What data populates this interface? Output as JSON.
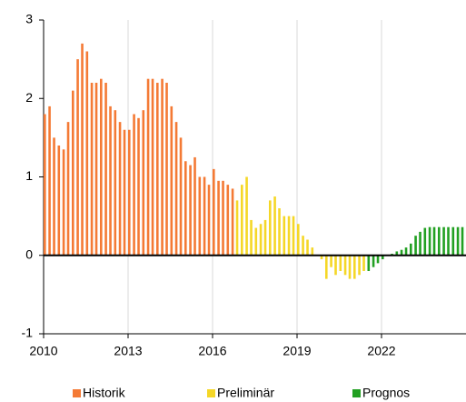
{
  "chart_data": {
    "type": "bar",
    "xlim": [
      2010,
      2025
    ],
    "xticks": [
      2010,
      2013,
      2016,
      2019,
      2022
    ],
    "ylim": [
      -1,
      3
    ],
    "yticks": [
      -1,
      0,
      1,
      2,
      3
    ],
    "grid": true,
    "legend": "bottom",
    "series": [
      {
        "name": "Historik",
        "color": "#f47a35",
        "x": [
          2010.0,
          2010.17,
          2010.33,
          2010.5,
          2010.67,
          2010.83,
          2011.0,
          2011.17,
          2011.33,
          2011.5,
          2011.67,
          2011.83,
          2012.0,
          2012.17,
          2012.33,
          2012.5,
          2012.67,
          2012.83,
          2013.0,
          2013.17,
          2013.33,
          2013.5,
          2013.67,
          2013.83,
          2014.0,
          2014.17,
          2014.33,
          2014.5,
          2014.67,
          2014.83,
          2015.0,
          2015.17,
          2015.33,
          2015.5,
          2015.67,
          2015.83,
          2016.0,
          2016.17,
          2016.33,
          2016.5,
          2016.67
        ],
        "values": [
          1.8,
          1.9,
          1.5,
          1.4,
          1.35,
          1.7,
          2.1,
          2.5,
          2.7,
          2.6,
          2.2,
          2.2,
          2.25,
          2.2,
          1.9,
          1.85,
          1.7,
          1.6,
          1.6,
          1.8,
          1.75,
          1.85,
          2.25,
          2.25,
          2.2,
          2.25,
          2.2,
          1.9,
          1.7,
          1.5,
          1.2,
          1.15,
          1.25,
          1.0,
          1.0,
          0.9,
          1.1,
          0.95,
          0.95,
          0.9,
          0.85
        ]
      },
      {
        "name": "Preliminär",
        "color": "#f5d727",
        "x": [
          2016.83,
          2017.0,
          2017.17,
          2017.33,
          2017.5,
          2017.67,
          2017.83,
          2018.0,
          2018.17,
          2018.33,
          2018.5,
          2018.67,
          2018.83,
          2019.0,
          2019.17,
          2019.33,
          2019.5,
          2019.67,
          2019.83,
          2020.0,
          2020.17,
          2020.33,
          2020.5,
          2020.67,
          2020.83,
          2021.0,
          2021.17,
          2021.33
        ],
        "values": [
          0.7,
          0.9,
          1.0,
          0.45,
          0.35,
          0.4,
          0.45,
          0.7,
          0.75,
          0.6,
          0.5,
          0.5,
          0.5,
          0.4,
          0.25,
          0.2,
          0.1,
          0.0,
          -0.05,
          -0.3,
          -0.15,
          -0.25,
          -0.2,
          -0.25,
          -0.3,
          -0.3,
          -0.25,
          -0.2
        ]
      },
      {
        "name": "Prognos",
        "color": "#22a022",
        "x": [
          2021.5,
          2021.67,
          2021.83,
          2022.0,
          2022.17,
          2022.33,
          2022.5,
          2022.67,
          2022.83,
          2023.0,
          2023.17,
          2023.33,
          2023.5,
          2023.67,
          2023.83,
          2024.0,
          2024.17,
          2024.33,
          2024.5,
          2024.67,
          2024.83
        ],
        "values": [
          -0.2,
          -0.15,
          -0.1,
          -0.05,
          0.0,
          0.02,
          0.05,
          0.07,
          0.1,
          0.15,
          0.25,
          0.3,
          0.35,
          0.36,
          0.36,
          0.36,
          0.36,
          0.36,
          0.36,
          0.36,
          0.36
        ]
      }
    ]
  }
}
